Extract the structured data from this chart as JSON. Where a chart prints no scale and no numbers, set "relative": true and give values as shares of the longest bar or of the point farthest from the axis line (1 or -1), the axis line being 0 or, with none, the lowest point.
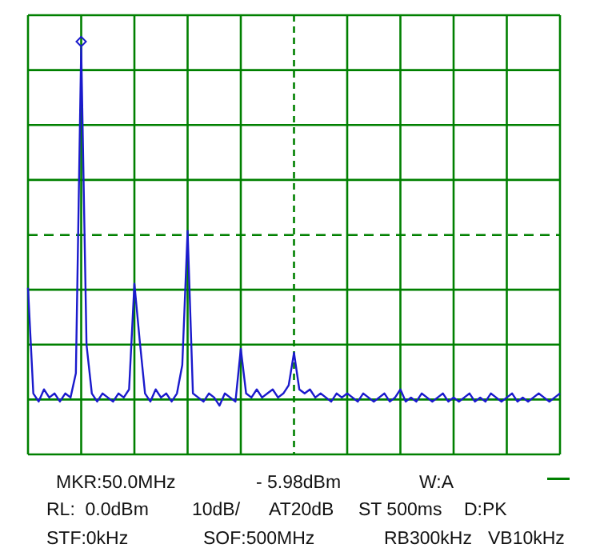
{
  "chart_data": {
    "type": "line",
    "relative": true,
    "grid": true,
    "marker": "none",
    "line_style": "solid",
    "categories": [
      null,
      null,
      null,
      null,
      null,
      null,
      null,
      null,
      null,
      null,
      null,
      null,
      null,
      null,
      null,
      null,
      null,
      null,
      null,
      null,
      null,
      null,
      null,
      null,
      null,
      null,
      null,
      null,
      null,
      null,
      null,
      null,
      null,
      null,
      null,
      null,
      null,
      null,
      null,
      null,
      null,
      null,
      null,
      null,
      null,
      null,
      null,
      null,
      null,
      null,
      null,
      null,
      null,
      null,
      null,
      null,
      null,
      null,
      null,
      null,
      null,
      null,
      null,
      null,
      null,
      null,
      null,
      null,
      null,
      null,
      null,
      null,
      null,
      null,
      null,
      null,
      null,
      null,
      null,
      null,
      null,
      null,
      null,
      null,
      null,
      null,
      null,
      null,
      null,
      null,
      null,
      null,
      null,
      null,
      null,
      null,
      null,
      null,
      null,
      null,
      null
    ],
    "series": [
      {
        "color": "#1a1acc",
        "values": [
          0.41,
          0.15,
          0.13,
          0.16,
          0.14,
          0.15,
          0.13,
          0.15,
          0.14,
          0.2,
          1.0,
          0.27,
          0.15,
          0.13,
          0.15,
          0.14,
          0.13,
          0.15,
          0.14,
          0.16,
          0.42,
          0.28,
          0.15,
          0.13,
          0.16,
          0.14,
          0.15,
          0.13,
          0.15,
          0.22,
          0.55,
          0.15,
          0.14,
          0.13,
          0.15,
          0.14,
          0.12,
          0.15,
          0.14,
          0.13,
          0.26,
          0.15,
          0.14,
          0.16,
          0.14,
          0.15,
          0.16,
          0.14,
          0.15,
          0.17,
          0.25,
          0.16,
          0.15,
          0.16,
          0.14,
          0.15,
          0.14,
          0.13,
          0.15,
          0.14,
          0.15,
          0.14,
          0.13,
          0.15,
          0.14,
          0.13,
          0.14,
          0.15,
          0.13,
          0.14,
          0.16,
          0.13,
          0.14,
          0.13,
          0.15,
          0.14,
          0.13,
          0.14,
          0.15,
          0.13,
          0.14,
          0.13,
          0.14,
          0.15,
          0.13,
          0.14,
          0.13,
          0.15,
          0.14,
          0.13,
          0.14,
          0.15,
          0.13,
          0.14,
          0.13,
          0.14,
          0.15,
          0.14,
          0.13,
          0.14,
          0.15
        ]
      }
    ],
    "ref_lines": [
      {
        "axis": "y",
        "value": 0.54,
        "color": "#008000",
        "line_style": "dashed"
      }
    ],
    "annotations": [
      "MKR:50.0MHz",
      "- 5.98dBm",
      "W:A",
      "RL:  0.0dBm",
      "10dB/",
      "AT20dB",
      "ST 500ms",
      "D:PK",
      "STF:0kHz",
      "SOF:500MHz",
      "RB300kHz",
      "VB10kHz"
    ]
  }
}
